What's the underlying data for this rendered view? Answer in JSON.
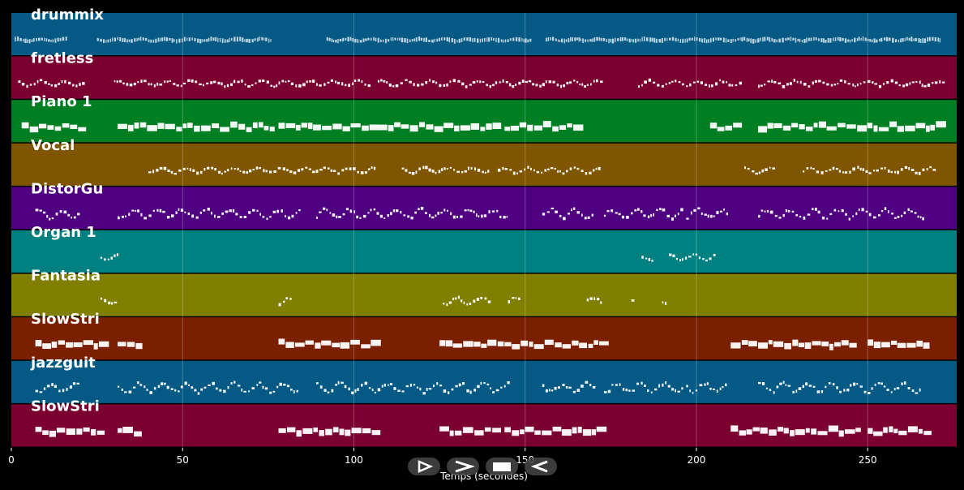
{
  "chart_data": {
    "type": "piano-roll",
    "xlabel": "Temps (secondes)",
    "xlim": [
      0,
      276
    ],
    "xticks": [
      0,
      50,
      100,
      150,
      200,
      250
    ],
    "grid": true,
    "tracks": [
      {
        "name": "drummix",
        "color": "#045a85",
        "style": "dense-small",
        "segments": [
          [
            1,
            16
          ],
          [
            25,
            76
          ],
          [
            92,
            152
          ],
          [
            156,
            271
          ]
        ]
      },
      {
        "name": "fretless",
        "color": "#7a0030",
        "style": "wavy-thin",
        "segments": [
          [
            2,
            21
          ],
          [
            30,
            105
          ],
          [
            107,
            172
          ],
          [
            183,
            213
          ],
          [
            218,
            272
          ]
        ]
      },
      {
        "name": "Piano 1",
        "color": "#007f22",
        "style": "block",
        "segments": [
          [
            3,
            21
          ],
          [
            31,
            76
          ],
          [
            78,
            106
          ],
          [
            107,
            142
          ],
          [
            144,
            167
          ],
          [
            204,
            212
          ],
          [
            218,
            272
          ]
        ]
      },
      {
        "name": "Vocal",
        "color": "#7f5500",
        "style": "wavy-thin",
        "segments": [
          [
            40,
            88
          ],
          [
            88,
            106
          ],
          [
            114,
            140
          ],
          [
            142,
            172
          ],
          [
            214,
            223
          ],
          [
            231,
            270
          ]
        ]
      },
      {
        "name": "DistorGu",
        "color": "#4e0080",
        "style": "wavy",
        "segments": [
          [
            7,
            20
          ],
          [
            31,
            84
          ],
          [
            89,
            145
          ],
          [
            155,
            170
          ],
          [
            173,
            196
          ],
          [
            197,
            209
          ],
          [
            218,
            266
          ]
        ]
      },
      {
        "name": "Organ 1",
        "color": "#008080",
        "style": "sparse",
        "segments": [
          [
            26,
            31
          ],
          [
            184,
            187
          ],
          [
            192,
            205
          ]
        ]
      },
      {
        "name": "Fantasia",
        "color": "#807f00",
        "style": "sparse",
        "segments": [
          [
            26,
            31
          ],
          [
            78,
            82
          ],
          [
            126,
            140
          ],
          [
            145,
            149
          ],
          [
            168,
            172
          ],
          [
            181,
            182
          ],
          [
            190,
            191
          ]
        ]
      },
      {
        "name": "SlowStri",
        "color": "#7a2000",
        "style": "block",
        "segments": [
          [
            7,
            26
          ],
          [
            31,
            38
          ],
          [
            78,
            106
          ],
          [
            125,
            142
          ],
          [
            144,
            172
          ],
          [
            210,
            247
          ],
          [
            250,
            268
          ]
        ]
      },
      {
        "name": "jazzguit",
        "color": "#045a85",
        "style": "wavy",
        "segments": [
          [
            7,
            20
          ],
          [
            31,
            84
          ],
          [
            89,
            145
          ],
          [
            155,
            170
          ],
          [
            173,
            196
          ],
          [
            197,
            209
          ],
          [
            218,
            266
          ]
        ]
      },
      {
        "name": "SlowStri",
        "color": "#7a0030",
        "style": "block",
        "segments": [
          [
            7,
            26
          ],
          [
            31,
            38
          ],
          [
            78,
            106
          ],
          [
            125,
            142
          ],
          [
            144,
            172
          ],
          [
            210,
            247
          ],
          [
            250,
            268
          ]
        ]
      }
    ]
  },
  "controls": {
    "play_icon": "play-outline-icon",
    "forward_icon": "fast-forward-icon",
    "stop_icon": "stop-icon",
    "back_icon": "rewind-icon"
  }
}
